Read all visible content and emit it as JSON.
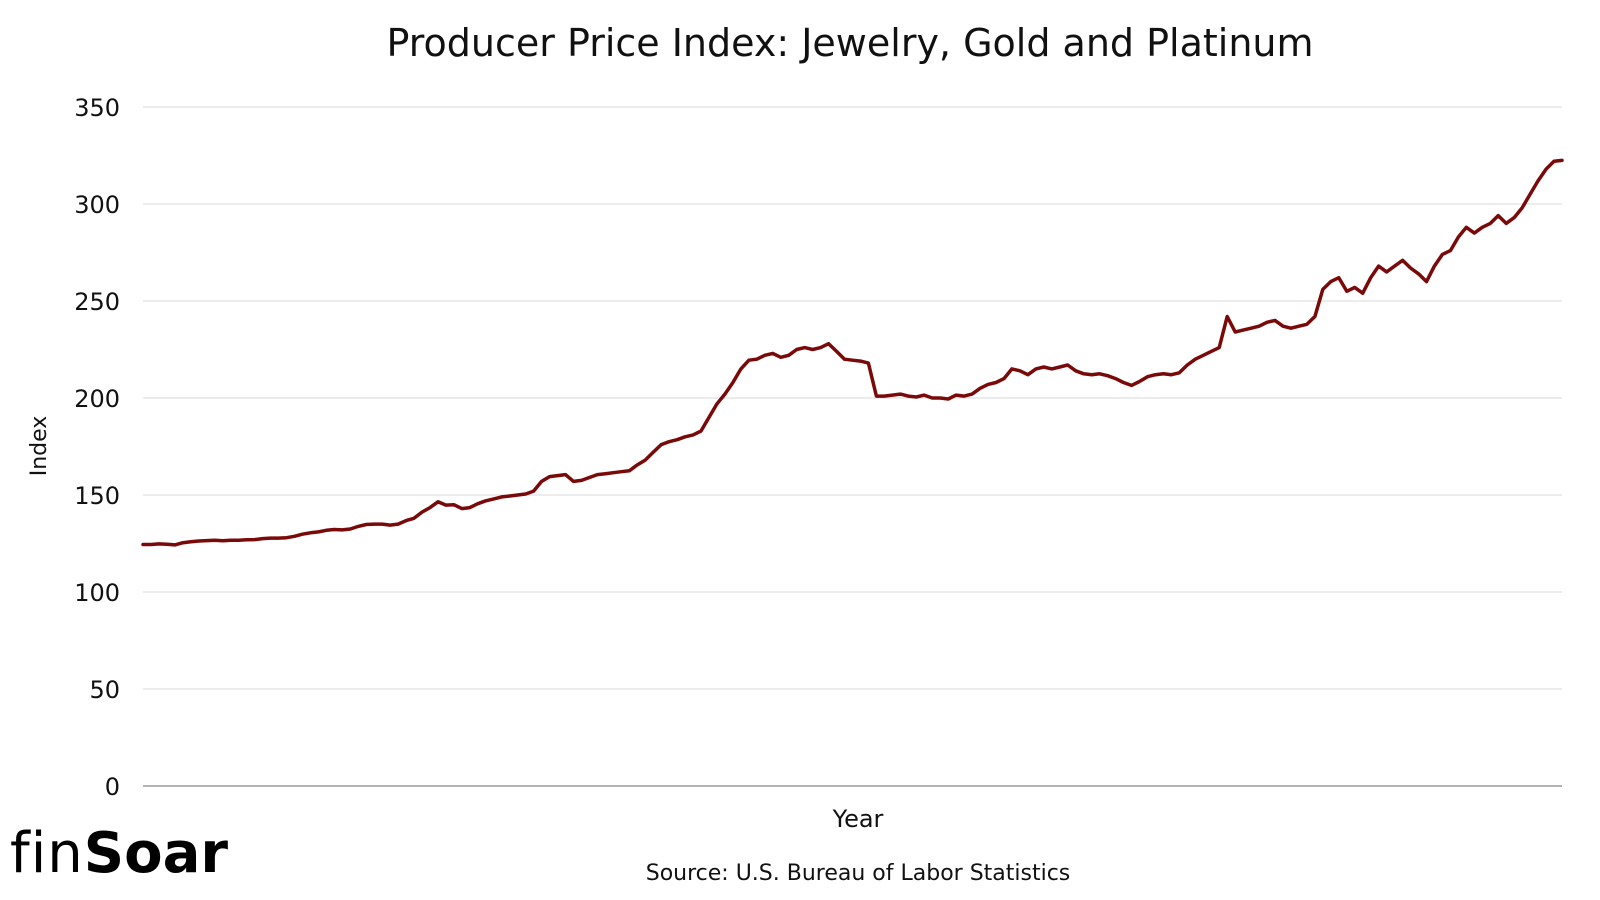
{
  "brand": {
    "prefix": "fin",
    "suffix": "Soar"
  },
  "colors": {
    "line": "#7a0a0a",
    "grid": "#d9d9d9",
    "axis": "#9a9a9a",
    "text": "#111111"
  },
  "chart_data": {
    "type": "line",
    "title": "Producer Price Index: Jewelry, Gold and Platinum",
    "xlabel": "Year",
    "ylabel": "Index",
    "source": "Source: U.S. Bureau of Labor Statistics",
    "ylim": [
      0,
      350
    ],
    "yticks": [
      0,
      50,
      100,
      150,
      200,
      250,
      300,
      350
    ],
    "ytick_labels": [
      "0",
      "50",
      "100",
      "150",
      "200",
      "250",
      "300",
      "350"
    ],
    "grid": true,
    "xticks_visible": false,
    "series": [
      {
        "name": "Producer Price Index: Jewelry, Gold and Platinum",
        "values": [
          124.5,
          124.5,
          124.8,
          124.6,
          124.3,
          125.4,
          125.9,
          126.3,
          126.5,
          126.7,
          126.4,
          126.7,
          126.7,
          126.9,
          127.0,
          127.5,
          127.8,
          127.8,
          128.0,
          128.7,
          129.8,
          130.5,
          131.0,
          131.8,
          132.2,
          132.0,
          132.5,
          133.8,
          134.8,
          135.0,
          135.0,
          134.5,
          135.0,
          136.8,
          138.0,
          141.2,
          143.5,
          146.5,
          144.8,
          145.0,
          143.0,
          143.5,
          145.5,
          147.0,
          148.0,
          149.0,
          149.5,
          150.0,
          150.5,
          152.0,
          157.0,
          159.5,
          160.0,
          160.5,
          157.0,
          157.5,
          159.0,
          160.5,
          161.0,
          161.5,
          162.0,
          162.5,
          165.5,
          168.0,
          172.0,
          176.0,
          177.5,
          178.5,
          180.0,
          181.0,
          183.0,
          190.0,
          197.0,
          202.0,
          208.0,
          215.0,
          219.5,
          220.0,
          222.0,
          223.0,
          221.0,
          222.0,
          225.0,
          226.0,
          225.0,
          226.0,
          228.0,
          224.0,
          220.0,
          219.5,
          219.0,
          218.0,
          201.0,
          201.0,
          201.5,
          202.0,
          201.0,
          200.5,
          201.5,
          200.0,
          200.0,
          199.5,
          201.5,
          201.0,
          202.0,
          205.0,
          207.0,
          208.0,
          210.0,
          215.0,
          214.0,
          212.0,
          215.0,
          216.0,
          215.0,
          216.0,
          217.0,
          214.0,
          212.5,
          212.0,
          212.5,
          211.5,
          210.0,
          208.0,
          206.5,
          208.5,
          211.0,
          212.0,
          212.5,
          212.0,
          213.0,
          217.0,
          220.0,
          222.0,
          224.0,
          226.0,
          242.0,
          234.0,
          235.0,
          236.0,
          237.0,
          239.0,
          240.0,
          237.0,
          236.0,
          237.0,
          238.0,
          242.0,
          256.0,
          260.0,
          262.0,
          255.0,
          257.0,
          254.0,
          262.0,
          268.0,
          265.0,
          268.0,
          271.0,
          267.0,
          264.0,
          260.0,
          268.0,
          274.0,
          276.0,
          283.0,
          288.0,
          285.0,
          288.0,
          290.0,
          294.0,
          290.0,
          293.0,
          298.0,
          305.0,
          312.0,
          318.0,
          322.0,
          322.5
        ]
      }
    ]
  }
}
